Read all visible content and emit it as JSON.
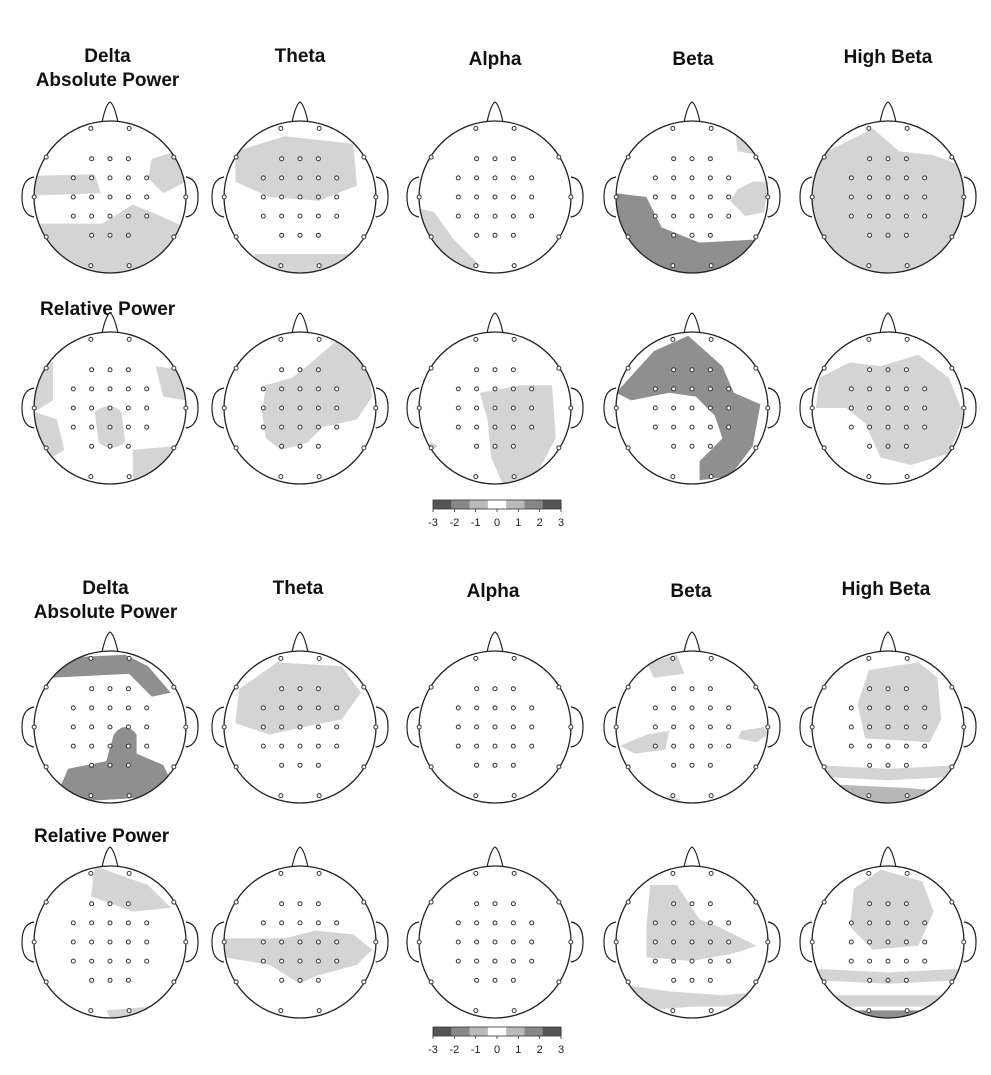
{
  "panels": [
    {
      "headers": {
        "delta": "Delta",
        "absolute_power": "Absolute Power",
        "theta": "Theta",
        "alpha": "Alpha",
        "beta": "Beta",
        "high_beta": "High Beta"
      },
      "relative_power_label": "Relative Power",
      "colorbar": {
        "ticks": [
          "-3",
          "-2",
          "-1",
          "0",
          "1",
          "2",
          "3"
        ]
      }
    },
    {
      "headers": {
        "delta": "Delta",
        "absolute_power": "Absolute Power",
        "theta": "Theta",
        "alpha": "Alpha",
        "beta": "Beta",
        "high_beta": "High Beta"
      },
      "relative_power_label": "Relative Power",
      "colorbar": {
        "ticks": [
          "-3",
          "-2",
          "-1",
          "0",
          "1",
          "2",
          "3"
        ]
      }
    }
  ],
  "colors": {
    "outline": "#222222",
    "light_gray": "#d4d4d4",
    "mid_gray": "#b8b8b8",
    "dark_gray": "#8f8f8f",
    "colorbar_stops": [
      "#555555",
      "#888888",
      "#bbbbbb",
      "#ffffff",
      "#bbbbbb",
      "#888888",
      "#555555"
    ]
  }
}
